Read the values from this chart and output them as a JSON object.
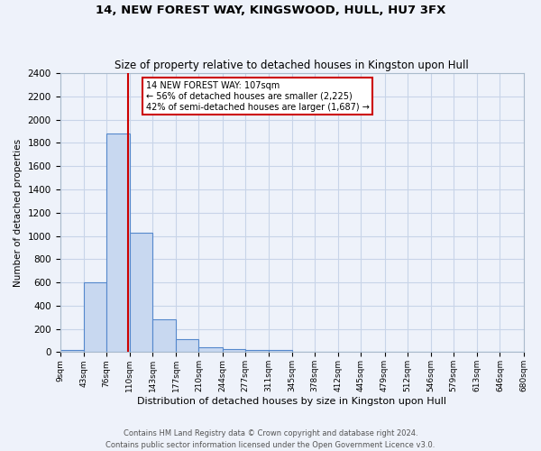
{
  "title1": "14, NEW FOREST WAY, KINGSWOOD, HULL, HU7 3FX",
  "title2": "Size of property relative to detached houses in Kingston upon Hull",
  "xlabel": "Distribution of detached houses by size in Kingston upon Hull",
  "ylabel": "Number of detached properties",
  "footer": "Contains HM Land Registry data © Crown copyright and database right 2024.\nContains public sector information licensed under the Open Government Licence v3.0.",
  "bin_edges": [
    9,
    43,
    76,
    110,
    143,
    177,
    210,
    244,
    277,
    311,
    345,
    378,
    412,
    445,
    479,
    512,
    546,
    579,
    613,
    646,
    680
  ],
  "bar_heights": [
    20,
    600,
    1880,
    1030,
    285,
    110,
    45,
    25,
    20,
    20,
    0,
    0,
    0,
    0,
    0,
    0,
    0,
    0,
    0,
    0
  ],
  "bar_color": "#c8d8f0",
  "bar_edgecolor": "#5588cc",
  "grid_color": "#c8d4e8",
  "background_color": "#eef2fa",
  "property_size": 107,
  "vline_color": "#cc0000",
  "annotation_line1": "14 NEW FOREST WAY: 107sqm",
  "annotation_line2": "← 56% of detached houses are smaller (2,225)",
  "annotation_line3": "42% of semi-detached houses are larger (1,687) →",
  "annotation_box_color": "#cc0000",
  "ylim": [
    0,
    2400
  ],
  "yticks": [
    0,
    200,
    400,
    600,
    800,
    1000,
    1200,
    1400,
    1600,
    1800,
    2000,
    2200,
    2400
  ]
}
